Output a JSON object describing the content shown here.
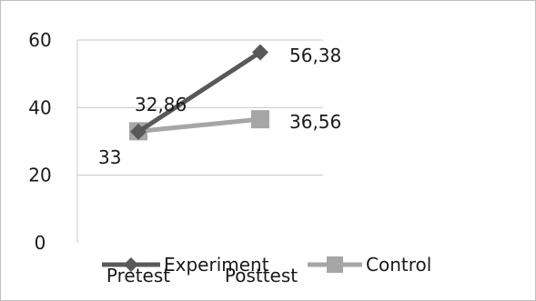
{
  "chart_data": {
    "type": "line",
    "categories": [
      "Pretest",
      "Posttest"
    ],
    "series": [
      {
        "name": "Experiment",
        "values": [
          32.86,
          56.38
        ],
        "labels": [
          "32,86",
          "56,38"
        ],
        "color": "#595959",
        "marker": "diamond"
      },
      {
        "name": "Control",
        "values": [
          33,
          36.56
        ],
        "labels": [
          "33",
          "36,56"
        ],
        "color": "#a6a6a6",
        "marker": "square"
      }
    ],
    "y_ticks": [
      "0",
      "20",
      "40",
      "60"
    ],
    "ylim": [
      0,
      60
    ],
    "grid": true,
    "legend_position": "bottom"
  }
}
